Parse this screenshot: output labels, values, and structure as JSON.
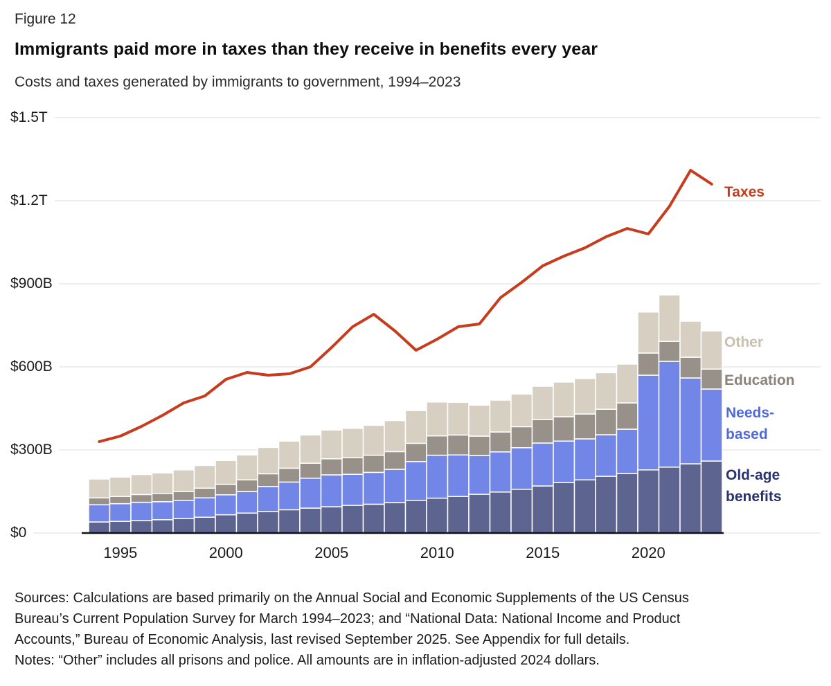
{
  "figure_label": "Figure 12",
  "title": "Immigrants paid more in taxes than they receive in benefits every year",
  "subtitle": "Costs and taxes generated by immigrants to government, 1994–2023",
  "labels": {
    "taxes": {
      "text": "Taxes",
      "color": "#c83c1e"
    },
    "other": {
      "text": "Other",
      "color": "#c9c0ae"
    },
    "education": {
      "text": "Education",
      "color": "#8b8378"
    },
    "needs_based": {
      "line1": "Needs-",
      "line2": "based",
      "color": "#4f68dd"
    },
    "old_age": {
      "line1": "Old-age",
      "line2": "benefits",
      "color": "#2a3272"
    }
  },
  "chart_data": {
    "type": "area",
    "stack_style": "step-stacked",
    "units": "billions of US dollars",
    "grid": true,
    "legend_position": "right",
    "ylim": [
      0,
      1500
    ],
    "x": [
      1994,
      1995,
      1996,
      1997,
      1998,
      1999,
      2000,
      2001,
      2002,
      2003,
      2004,
      2005,
      2006,
      2007,
      2008,
      2009,
      2010,
      2011,
      2012,
      2013,
      2014,
      2015,
      2016,
      2017,
      2018,
      2019,
      2020,
      2021,
      2022,
      2023
    ],
    "series": [
      {
        "name": "Old-age benefits",
        "color": "#5c648f",
        "values": [
          40,
          42,
          45,
          48,
          52,
          57,
          66,
          72,
          78,
          84,
          90,
          95,
          100,
          104,
          110,
          118,
          126,
          132,
          140,
          148,
          158,
          170,
          182,
          192,
          205,
          215,
          228,
          238,
          250,
          260
        ]
      },
      {
        "name": "Needs-based",
        "color": "#7186e6",
        "values": [
          62,
          64,
          66,
          65,
          66,
          70,
          72,
          78,
          90,
          100,
          108,
          115,
          112,
          115,
          120,
          140,
          155,
          150,
          140,
          145,
          150,
          155,
          150,
          148,
          150,
          160,
          342,
          382,
          310,
          260
        ]
      },
      {
        "name": "Education",
        "color": "#97918a",
        "values": [
          25,
          26,
          28,
          30,
          32,
          35,
          38,
          42,
          46,
          50,
          54,
          58,
          60,
          62,
          64,
          66,
          70,
          72,
          70,
          72,
          76,
          85,
          88,
          90,
          92,
          95,
          80,
          72,
          75,
          72
        ]
      },
      {
        "name": "Other",
        "color": "#d6cfc2",
        "values": [
          68,
          70,
          72,
          74,
          78,
          82,
          86,
          90,
          95,
          98,
          102,
          104,
          106,
          108,
          112,
          118,
          122,
          118,
          112,
          115,
          118,
          120,
          125,
          128,
          132,
          140,
          148,
          168,
          130,
          138
        ]
      }
    ],
    "line_series": {
      "name": "Taxes",
      "color": "#c83c1e",
      "values": [
        330,
        350,
        385,
        425,
        470,
        495,
        555,
        580,
        570,
        575,
        600,
        670,
        745,
        790,
        730,
        660,
        700,
        745,
        755,
        850,
        905,
        965,
        1000,
        1030,
        1070,
        1100,
        1080,
        1180,
        1310,
        1260
      ]
    },
    "y_ticks": [
      {
        "value": 0,
        "label": "$0"
      },
      {
        "value": 300,
        "label": "$300B"
      },
      {
        "value": 600,
        "label": "$600B"
      },
      {
        "value": 900,
        "label": "$900B"
      },
      {
        "value": 1200,
        "label": "$1.2T"
      },
      {
        "value": 1500,
        "label": "$1.5T"
      }
    ],
    "x_ticks": [
      1995,
      2000,
      2005,
      2010,
      2015,
      2020
    ]
  },
  "footer": {
    "lines": [
      "Sources: Calculations are based primarily on the Annual Social and Economic Supplements of the US Census",
      "Bureau’s Current Population Survey for March 1994–2023; and “National Data: National Income and Product",
      "Accounts,” Bureau of Economic Analysis, last revised September 2025. See Appendix for full details.",
      "Notes: “Other” includes all prisons and police. All amounts are in inflation-adjusted 2024 dollars."
    ]
  }
}
